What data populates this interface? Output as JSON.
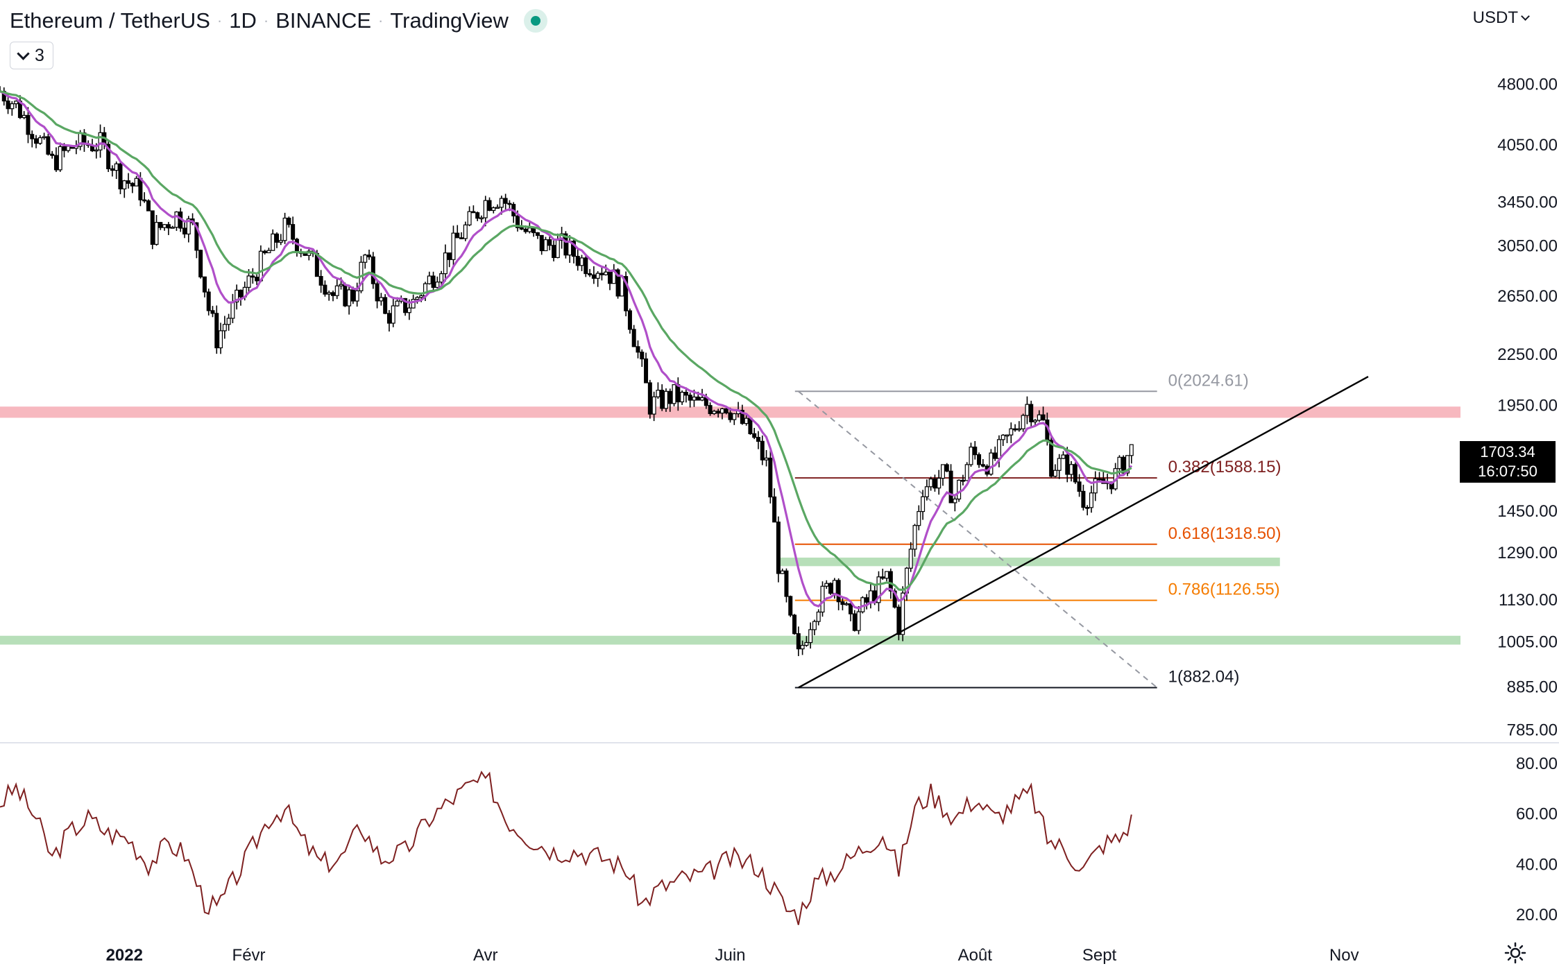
{
  "header": {
    "symbol": "Ethereum / TetherUS",
    "interval": "1D",
    "exchange": "BINANCE",
    "platform": "TradingView",
    "indicator_count": "3",
    "currency": "USDT"
  },
  "last_price": {
    "value": "1703.34",
    "countdown": "16:07:50"
  },
  "chart_data": [
    {
      "type": "candlestick",
      "title": "Ethereum / TetherUS · 1D · BINANCE",
      "x_ticks": [
        "2022",
        "Févr",
        "Avr",
        "Juin",
        "Août",
        "Sept",
        "Nov"
      ],
      "y_ticks": [
        "4800.00",
        "4050.00",
        "3450.00",
        "3050.00",
        "2650.00",
        "2250.00",
        "1950.00",
        "1450.00",
        "1290.00",
        "1130.00",
        "1005.00",
        "885.00",
        "785.00"
      ],
      "y_scale": "log",
      "ylim": [
        760,
        5400
      ],
      "start_date": "2021-12-01",
      "end_date": "2022-11-30",
      "close_path": [
        [
          "2021-12-01",
          4700
        ],
        [
          "2021-12-05",
          4520
        ],
        [
          "2021-12-10",
          4150
        ],
        [
          "2021-12-14",
          3850
        ],
        [
          "2021-12-20",
          4050
        ],
        [
          "2021-12-26",
          4050
        ],
        [
          "2021-12-31",
          3700
        ],
        [
          "2022-01-05",
          3550
        ],
        [
          "2022-01-08",
          3150
        ],
        [
          "2022-01-14",
          3320
        ],
        [
          "2022-01-18",
          3200
        ],
        [
          "2022-01-22",
          2550
        ],
        [
          "2022-01-24",
          2350
        ],
        [
          "2022-01-28",
          2550
        ],
        [
          "2022-02-04",
          2900
        ],
        [
          "2022-02-10",
          3200
        ],
        [
          "2022-02-15",
          3000
        ],
        [
          "2022-02-22",
          2650
        ],
        [
          "2022-02-27",
          2650
        ],
        [
          "2022-03-02",
          2950
        ],
        [
          "2022-03-07",
          2500
        ],
        [
          "2022-03-14",
          2600
        ],
        [
          "2022-03-20",
          2850
        ],
        [
          "2022-03-25",
          3100
        ],
        [
          "2022-04-01",
          3450
        ],
        [
          "2022-04-05",
          3500
        ],
        [
          "2022-04-10",
          3200
        ],
        [
          "2022-04-15",
          3050
        ],
        [
          "2022-04-20",
          3050
        ],
        [
          "2022-04-26",
          2900
        ],
        [
          "2022-05-01",
          2850
        ],
        [
          "2022-05-05",
          2700
        ],
        [
          "2022-05-09",
          2250
        ],
        [
          "2022-05-12",
          1950
        ],
        [
          "2022-05-18",
          2000
        ],
        [
          "2022-05-24",
          1950
        ],
        [
          "2022-05-31",
          1950
        ],
        [
          "2022-06-06",
          1800
        ],
        [
          "2022-06-10",
          1650
        ],
        [
          "2022-06-13",
          1250
        ],
        [
          "2022-06-16",
          1050
        ],
        [
          "2022-06-18",
          960
        ],
        [
          "2022-06-22",
          1100
        ],
        [
          "2022-06-27",
          1200
        ],
        [
          "2022-07-01",
          1050
        ],
        [
          "2022-07-05",
          1120
        ],
        [
          "2022-07-10",
          1200
        ],
        [
          "2022-07-13",
          1050
        ],
        [
          "2022-07-16",
          1300
        ],
        [
          "2022-07-19",
          1550
        ],
        [
          "2022-07-24",
          1600
        ],
        [
          "2022-07-27",
          1500
        ],
        [
          "2022-07-31",
          1700
        ],
        [
          "2022-08-05",
          1650
        ],
        [
          "2022-08-10",
          1800
        ],
        [
          "2022-08-14",
          1950
        ],
        [
          "2022-08-18",
          1850
        ],
        [
          "2022-08-20",
          1650
        ],
        [
          "2022-08-24",
          1650
        ],
        [
          "2022-08-28",
          1500
        ],
        [
          "2022-09-01",
          1550
        ],
        [
          "2022-09-05",
          1600
        ],
        [
          "2022-09-09",
          1720
        ]
      ],
      "moving_averages": [
        {
          "color": "#b04fc9",
          "length_days": 9
        },
        {
          "color": "#5aa763",
          "length_days": 21
        }
      ],
      "fibonacci": {
        "start_date": "2022-06-18",
        "end_date": "2022-08-14",
        "right_date": "2022-09-05",
        "levels": [
          {
            "label": "0(2024.61)",
            "value": 2024.61,
            "color": "#9598a1"
          },
          {
            "label": "0.382(1588.15)",
            "value": 1588.15,
            "color": "#7e2020"
          },
          {
            "label": "0.618(1318.50)",
            "value": 1318.5,
            "color": "#e65100"
          },
          {
            "label": "0.786(1126.55)",
            "value": 1126.55,
            "color": "#f57c00"
          },
          {
            "label": "1(882.04)",
            "value": 882.04,
            "color": "#131722"
          }
        ]
      },
      "zones": [
        {
          "color": "#f7b8bf",
          "low": 1880,
          "high": 1940,
          "from_date": "2021-12-01",
          "to_date": "2022-11-30"
        },
        {
          "color": "#b7dfb9",
          "low": 1240,
          "high": 1270,
          "from_date": "2022-06-13",
          "to_date": "2022-10-16"
        },
        {
          "color": "#b7dfb9",
          "low": 995,
          "high": 1020,
          "from_date": "2021-12-01",
          "to_date": "2022-11-30"
        }
      ],
      "trendline": {
        "from": [
          "2022-06-18",
          882
        ],
        "to": [
          "2022-11-07",
          2110
        ],
        "color": "#000000"
      },
      "diagonal": {
        "from": [
          "2022-06-18",
          2024.61
        ],
        "to": [
          "2022-09-05",
          882.04
        ],
        "color": "#9598a1"
      }
    },
    {
      "type": "line",
      "y_ticks": [
        "80.00",
        "60.00",
        "40.00",
        "20.00"
      ],
      "ylim": [
        14,
        86
      ],
      "color": "#7e2020",
      "path": [
        [
          "2021-12-01",
          64
        ],
        [
          "2021-12-05",
          70
        ],
        [
          "2021-12-10",
          58
        ],
        [
          "2021-12-14",
          42
        ],
        [
          "2021-12-18",
          52
        ],
        [
          "2021-12-23",
          58
        ],
        [
          "2021-12-28",
          52
        ],
        [
          "2022-01-02",
          50
        ],
        [
          "2022-01-07",
          40
        ],
        [
          "2022-01-12",
          48
        ],
        [
          "2022-01-16",
          44
        ],
        [
          "2022-01-21",
          25
        ],
        [
          "2022-01-24",
          22
        ],
        [
          "2022-01-30",
          38
        ],
        [
          "2022-02-06",
          58
        ],
        [
          "2022-02-10",
          62
        ],
        [
          "2022-02-14",
          50
        ],
        [
          "2022-02-19",
          40
        ],
        [
          "2022-02-24",
          42
        ],
        [
          "2022-03-01",
          55
        ],
        [
          "2022-03-06",
          42
        ],
        [
          "2022-03-12",
          45
        ],
        [
          "2022-03-18",
          58
        ],
        [
          "2022-03-24",
          66
        ],
        [
          "2022-03-29",
          72
        ],
        [
          "2022-04-02",
          72
        ],
        [
          "2022-04-06",
          58
        ],
        [
          "2022-04-12",
          50
        ],
        [
          "2022-04-18",
          45
        ],
        [
          "2022-04-24",
          45
        ],
        [
          "2022-05-01",
          42
        ],
        [
          "2022-05-06",
          38
        ],
        [
          "2022-05-10",
          24
        ],
        [
          "2022-05-14",
          30
        ],
        [
          "2022-05-20",
          34
        ],
        [
          "2022-05-26",
          36
        ],
        [
          "2022-06-01",
          42
        ],
        [
          "2022-06-07",
          40
        ],
        [
          "2022-06-12",
          30
        ],
        [
          "2022-06-15",
          22
        ],
        [
          "2022-06-18",
          20
        ],
        [
          "2022-06-22",
          32
        ],
        [
          "2022-06-28",
          38
        ],
        [
          "2022-07-03",
          45
        ],
        [
          "2022-07-09",
          52
        ],
        [
          "2022-07-13",
          38
        ],
        [
          "2022-07-17",
          62
        ],
        [
          "2022-07-21",
          68
        ],
        [
          "2022-07-27",
          58
        ],
        [
          "2022-08-01",
          66
        ],
        [
          "2022-08-06",
          58
        ],
        [
          "2022-08-11",
          64
        ],
        [
          "2022-08-15",
          68
        ],
        [
          "2022-08-19",
          50
        ],
        [
          "2022-08-23",
          46
        ],
        [
          "2022-08-28",
          38
        ],
        [
          "2022-09-02",
          48
        ],
        [
          "2022-09-06",
          50
        ],
        [
          "2022-09-09",
          57
        ]
      ]
    }
  ]
}
